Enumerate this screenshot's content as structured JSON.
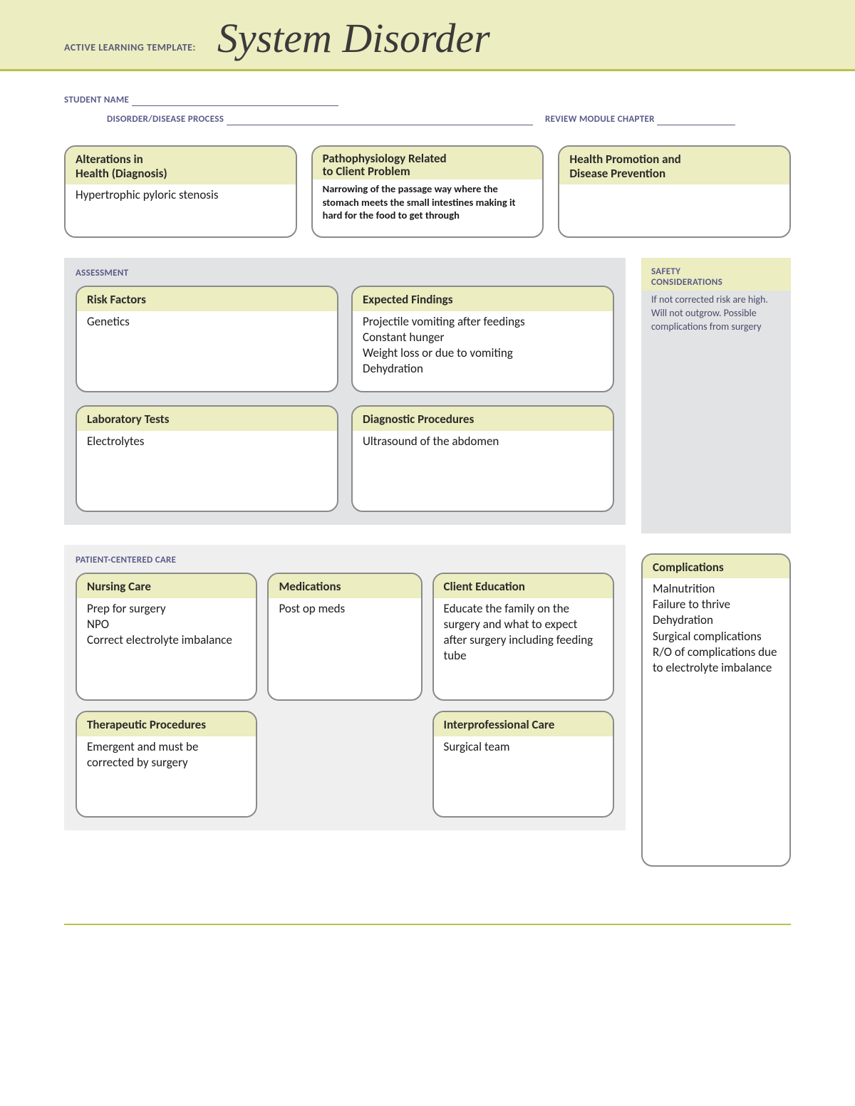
{
  "header": {
    "template_label": "ACTIVE LEARNING TEMPLATE:",
    "title": "System Disorder"
  },
  "fields": {
    "student_name_label": "STUDENT NAME",
    "disorder_label": "DISORDER/DISEASE PROCESS",
    "review_module_label": "REVIEW MODULE CHAPTER"
  },
  "top": {
    "alterations": {
      "title": "Alterations in\nHealth (Diagnosis)",
      "body": "Hypertrophic pyloric stenosis"
    },
    "patho": {
      "title": "Pathophysiology Related\nto Client Problem",
      "body": "Narrowing of the passage way where the stomach meets the small intestines making it hard for the food to get through"
    },
    "promotion": {
      "title": "Health Promotion and\nDisease Prevention",
      "body": ""
    }
  },
  "assessment": {
    "label": "ASSESSMENT",
    "risk": {
      "title": "Risk Factors",
      "body": "Genetics"
    },
    "expected": {
      "title": "Expected Findings",
      "body": "Projectile vomiting after feedings\nConstant hunger\nWeight loss or  due to vomiting\nDehydration"
    },
    "labs": {
      "title": "Laboratory Tests",
      "body": "Electrolytes"
    },
    "diag": {
      "title": "Diagnostic Procedures",
      "body": "Ultrasound of the abdomen"
    }
  },
  "safety": {
    "label1": "SAFETY",
    "label2": "CONSIDERATIONS",
    "body": "If not corrected risk are high. Will not outgrow. Possible complications from surgery"
  },
  "pcc": {
    "label": "PATIENT-CENTERED CARE",
    "nursing": {
      "title": "Nursing Care",
      "body": "Prep for surgery\nNPO\nCorrect electrolyte imbalance"
    },
    "meds": {
      "title": "Medications",
      "body": "Post op meds"
    },
    "education": {
      "title": "Client Education",
      "body": "Educate the family on the surgery and what to expect after surgery including feeding tube"
    },
    "therapeutic": {
      "title": "Therapeutic Procedures",
      "body": "Emergent and must be corrected by surgery"
    },
    "interprof": {
      "title": "Interprofessional Care",
      "body": "Surgical team"
    }
  },
  "complications": {
    "title": "Complications",
    "body": "Malnutrition\nFailure to thrive\nDehydration\nSurgical complications\nR/O of complications due to electrolyte imbalance"
  },
  "colors": {
    "band_bg": "#ecedc0",
    "accent_line": "#bcc04a",
    "panel_bg": "#e2e3e4",
    "label_color": "#5a5a8a",
    "box_border": "#8a8a8a"
  }
}
